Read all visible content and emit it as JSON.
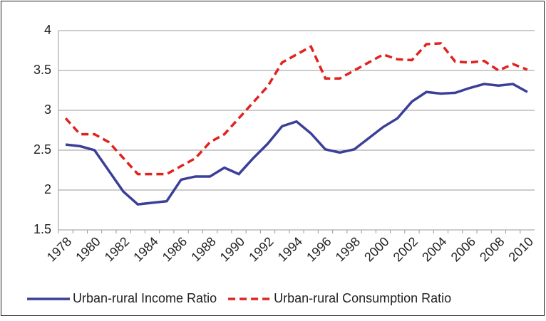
{
  "chart_data": {
    "type": "line",
    "categories": [
      "1978",
      null,
      "1980",
      null,
      "1982",
      null,
      "1984",
      null,
      "1986",
      null,
      "1988",
      null,
      "1990",
      null,
      "1992",
      null,
      "1994",
      null,
      "1996",
      null,
      "1998",
      null,
      "2000",
      null,
      "2002",
      null,
      "2004",
      null,
      "2006",
      null,
      "2008",
      null,
      "2010"
    ],
    "series": [
      {
        "name": "Urban-rural Income Ratio",
        "color": "#3b3f98",
        "dashed": false,
        "values": [
          2.57,
          2.55,
          2.5,
          2.24,
          1.98,
          1.82,
          1.84,
          1.86,
          2.13,
          2.17,
          2.17,
          2.28,
          2.2,
          2.4,
          2.58,
          2.8,
          2.86,
          2.71,
          2.51,
          2.47,
          2.51,
          2.65,
          2.79,
          2.9,
          3.11,
          3.23,
          3.21,
          3.22,
          3.28,
          3.33,
          3.31,
          3.33,
          3.23
        ]
      },
      {
        "name": "Urban-rural Consumption Ratio",
        "color": "#e0231f",
        "dashed": true,
        "values": [
          2.9,
          2.7,
          2.7,
          2.6,
          2.4,
          2.2,
          2.2,
          2.2,
          2.3,
          2.4,
          2.6,
          2.7,
          2.9,
          3.1,
          3.3,
          3.6,
          3.7,
          3.8,
          3.4,
          3.4,
          3.5,
          3.6,
          3.7,
          3.64,
          3.63,
          3.83,
          3.84,
          3.61,
          3.6,
          3.62,
          3.5,
          3.58,
          3.51
        ]
      }
    ],
    "ylim": [
      1.5,
      4
    ],
    "yticks": [
      1.5,
      2,
      2.5,
      3,
      3.5,
      4
    ],
    "grid": true,
    "legend": "bottom"
  }
}
